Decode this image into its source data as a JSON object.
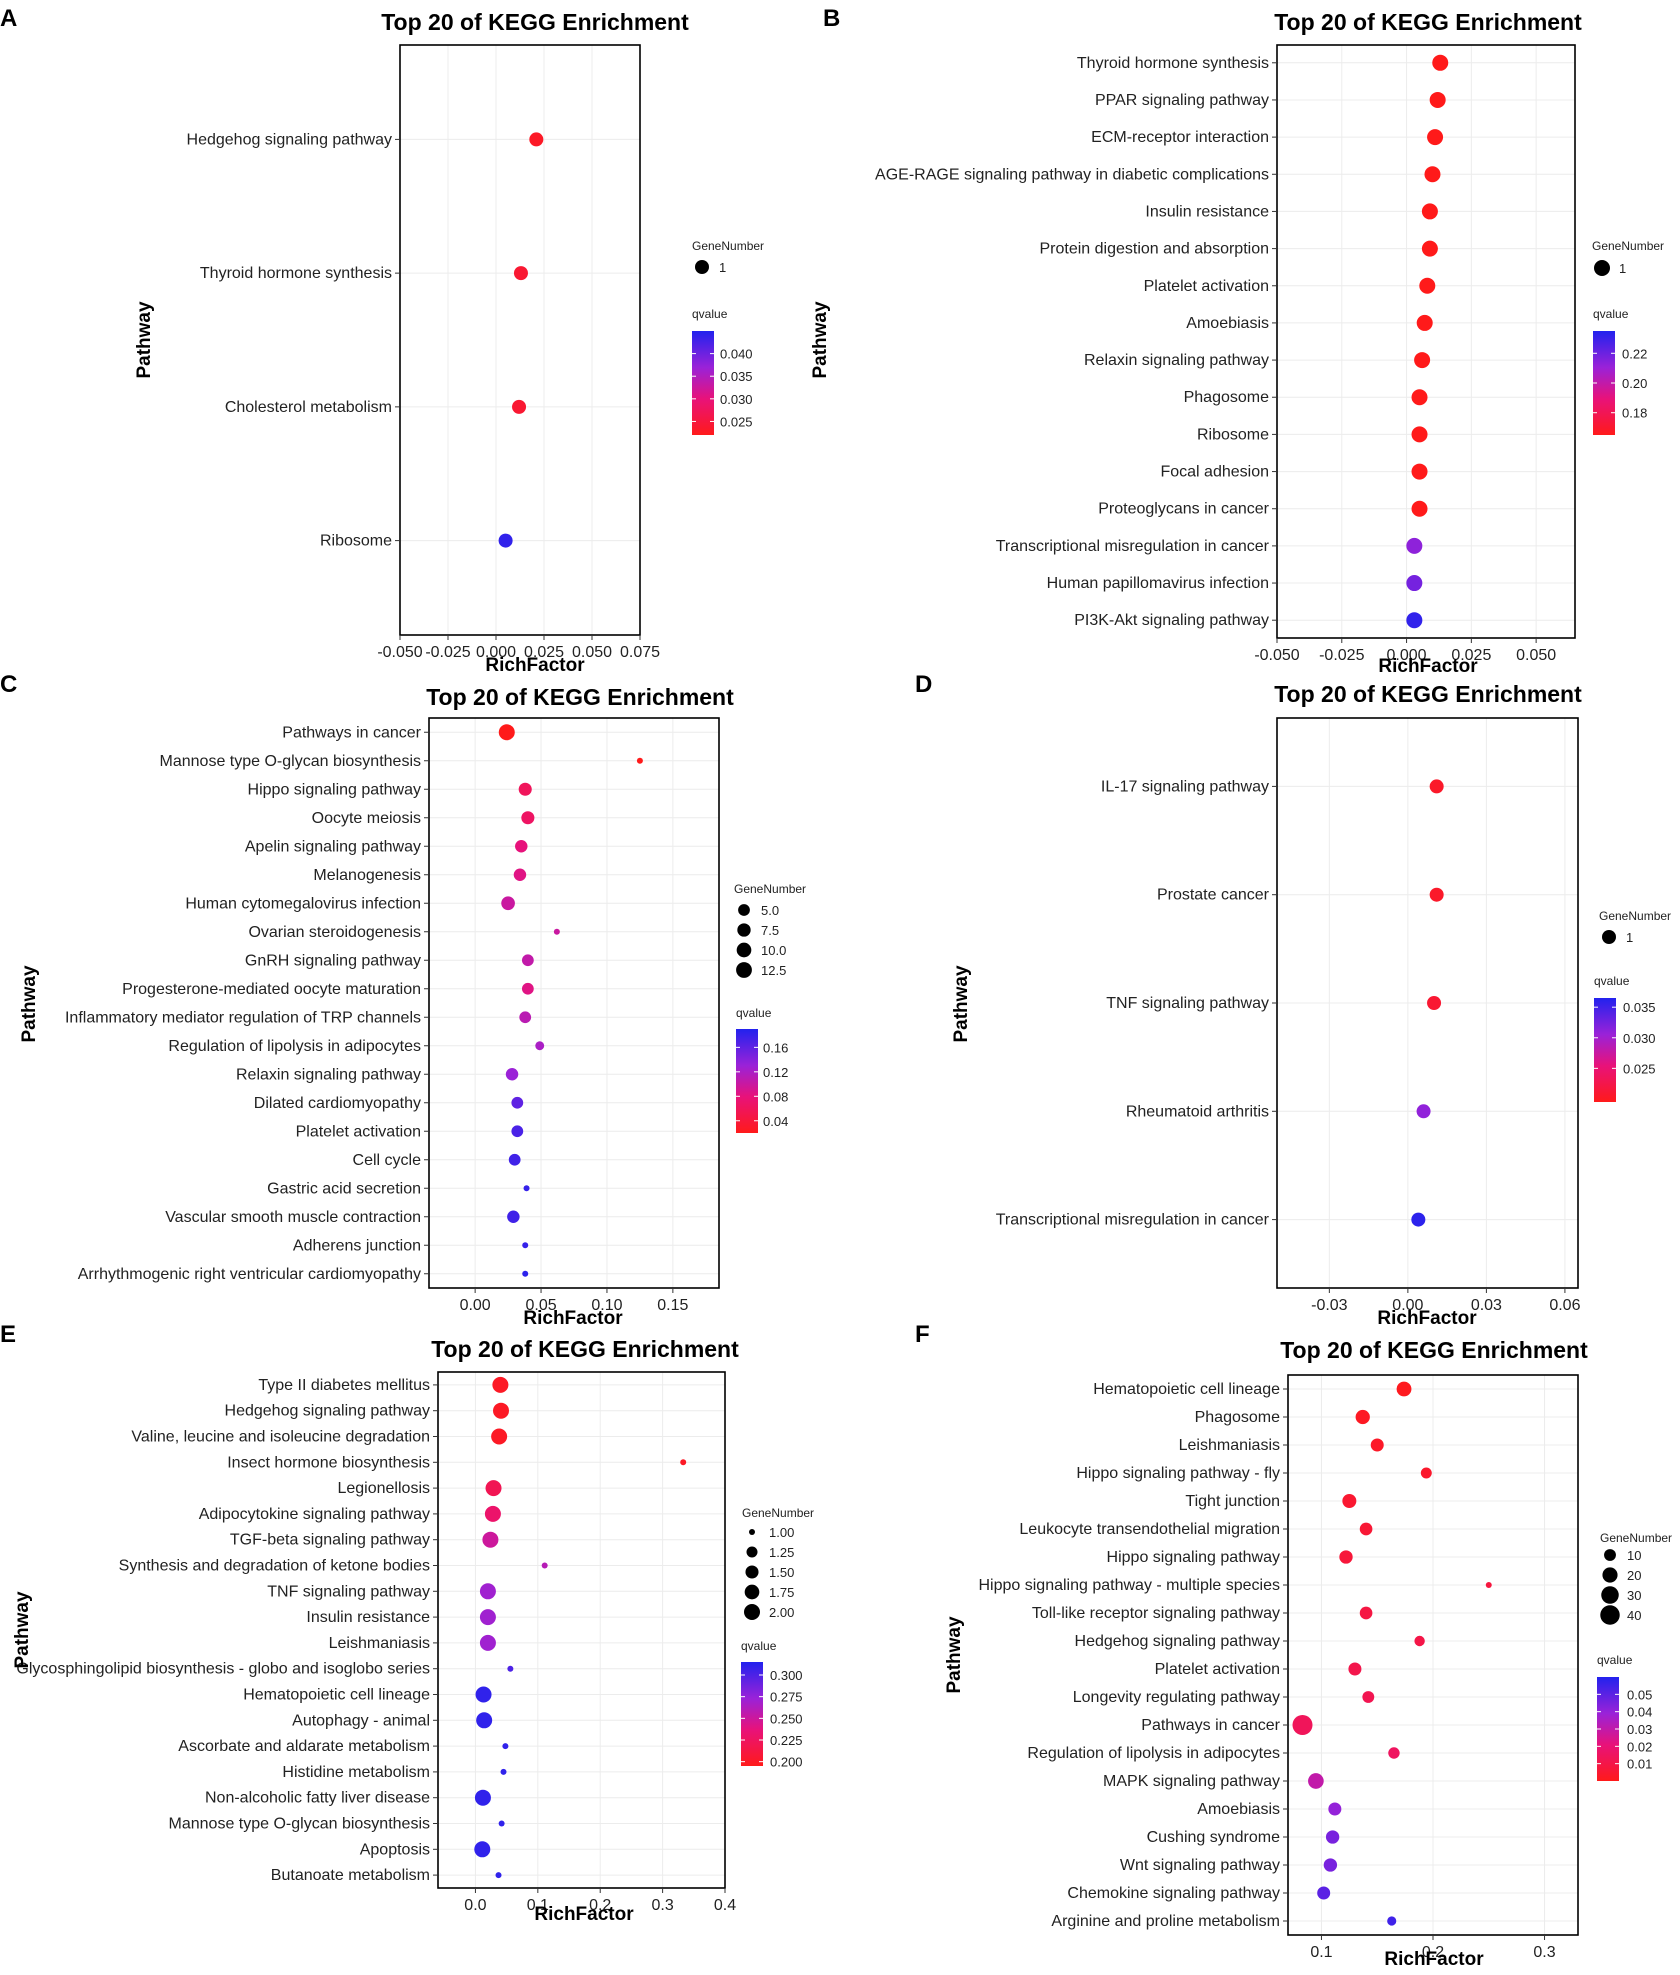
{
  "chart_data": [
    {
      "panel": "A",
      "type": "scatter",
      "title": "Top 20 of KEGG Enrichment",
      "xlabel": "RichFactor",
      "ylabel": "Pathway",
      "xlim": [
        -0.05,
        0.075
      ],
      "xticks": [
        -0.05,
        -0.025,
        0.0,
        0.025,
        0.05,
        0.075
      ],
      "xtick_labels": [
        "-0.050",
        "-0.025",
        "0.000",
        "0.025",
        "0.050",
        "0.075"
      ],
      "pathways": [
        "Hedgehog signaling pathway",
        "Thyroid hormone synthesis",
        "Cholesterol metabolism",
        "Ribosome"
      ],
      "rich_factor": [
        0.021,
        0.013,
        0.012,
        0.005
      ],
      "gene_number": [
        1,
        1,
        1,
        1
      ],
      "qvalue": [
        0.023,
        0.024,
        0.024,
        0.044
      ],
      "size_legend": {
        "title": "GeneNumber",
        "values": [
          1
        ],
        "labels": [
          "1"
        ]
      },
      "color_legend": {
        "title": "qvalue",
        "min": 0.022,
        "max": 0.045,
        "ticks": [
          0.04,
          0.035,
          0.03,
          0.025
        ],
        "labels": [
          "0.040",
          "0.035",
          "0.030",
          "0.025"
        ]
      }
    },
    {
      "panel": "B",
      "type": "scatter",
      "title": "Top 20 of KEGG Enrichment",
      "xlabel": "RichFactor",
      "ylabel": "Pathway",
      "xlim": [
        -0.05,
        0.065
      ],
      "xticks": [
        -0.05,
        -0.025,
        0.0,
        0.025,
        0.05
      ],
      "xtick_labels": [
        "-0.050",
        "-0.025",
        "0.000",
        "0.025",
        "0.050"
      ],
      "pathways": [
        "Thyroid hormone synthesis",
        "PPAR signaling pathway",
        "ECM-receptor interaction",
        "AGE-RAGE signaling pathway in diabetic complications",
        "Insulin resistance",
        "Protein digestion and absorption",
        "Platelet activation",
        "Amoebiasis",
        "Relaxin signaling pathway",
        "Phagosome",
        "Ribosome",
        "Focal adhesion",
        "Proteoglycans in cancer",
        "Transcriptional misregulation in cancer",
        "Human papillomavirus infection",
        "PI3K-Akt signaling pathway"
      ],
      "rich_factor": [
        0.013,
        0.012,
        0.011,
        0.01,
        0.009,
        0.009,
        0.008,
        0.007,
        0.006,
        0.005,
        0.005,
        0.005,
        0.005,
        0.003,
        0.003,
        0.003
      ],
      "gene_number": [
        1,
        1,
        1,
        1,
        1,
        1,
        1,
        1,
        1,
        1,
        1,
        1,
        1,
        1,
        1,
        1
      ],
      "qvalue": [
        0.165,
        0.165,
        0.165,
        0.165,
        0.165,
        0.165,
        0.165,
        0.165,
        0.165,
        0.165,
        0.165,
        0.165,
        0.165,
        0.213,
        0.218,
        0.232
      ],
      "size_legend": {
        "title": "GeneNumber",
        "values": [
          1
        ],
        "labels": [
          "1"
        ]
      },
      "color_legend": {
        "title": "qvalue",
        "min": 0.165,
        "max": 0.235,
        "ticks": [
          0.22,
          0.2,
          0.18
        ],
        "labels": [
          "0.22",
          "0.20",
          "0.18"
        ]
      }
    },
    {
      "panel": "C",
      "type": "scatter",
      "title": "Top 20 of KEGG Enrichment",
      "xlabel": "RichFactor",
      "ylabel": "Pathway",
      "xlim": [
        -0.035,
        0.185
      ],
      "xticks": [
        0.0,
        0.05,
        0.1,
        0.15
      ],
      "xtick_labels": [
        "0.00",
        "0.05",
        "0.10",
        "0.15"
      ],
      "pathways": [
        "Pathways in cancer",
        "Mannose type O-glycan biosynthesis",
        "Hippo signaling pathway",
        "Oocyte meiosis",
        "Apelin signaling pathway",
        "Melanogenesis",
        "Human cytomegalovirus infection",
        "Ovarian steroidogenesis",
        "GnRH signaling pathway",
        "Progesterone-mediated oocyte maturation",
        "Inflammatory mediator regulation of TRP channels",
        "Regulation of lipolysis in adipocytes",
        "Relaxin signaling pathway",
        "Dilated cardiomyopathy",
        "Platelet activation",
        "Cell cycle",
        "Gastric acid secretion",
        "Vascular smooth muscle contraction",
        "Adherens junction",
        "Arrhythmogenic right ventricular cardiomyopathy"
      ],
      "rich_factor": [
        0.024,
        0.125,
        0.038,
        0.04,
        0.035,
        0.034,
        0.025,
        0.062,
        0.04,
        0.04,
        0.038,
        0.049,
        0.028,
        0.032,
        0.032,
        0.03,
        0.039,
        0.029,
        0.038,
        0.038
      ],
      "gene_number": [
        13,
        1,
        7,
        7,
        6,
        6,
        8,
        1,
        5,
        5,
        5,
        2,
        6,
        5,
        5,
        5,
        1,
        6,
        1,
        1
      ],
      "qvalue": [
        0.02,
        0.02,
        0.06,
        0.065,
        0.08,
        0.085,
        0.1,
        0.1,
        0.105,
        0.085,
        0.11,
        0.12,
        0.13,
        0.16,
        0.17,
        0.175,
        0.18,
        0.175,
        0.18,
        0.185
      ],
      "size_legend": {
        "title": "GeneNumber",
        "values": [
          5,
          7.5,
          10,
          12.5
        ],
        "labels": [
          "5.0",
          "7.5",
          "10.0",
          "12.5"
        ]
      },
      "color_legend": {
        "title": "qvalue",
        "min": 0.02,
        "max": 0.19,
        "ticks": [
          0.16,
          0.12,
          0.08,
          0.04
        ],
        "labels": [
          "0.16",
          "0.12",
          "0.08",
          "0.04"
        ]
      }
    },
    {
      "panel": "D",
      "type": "scatter",
      "title": "Top 20 of KEGG Enrichment",
      "xlabel": "RichFactor",
      "ylabel": "Pathway",
      "xlim": [
        -0.05,
        0.065
      ],
      "xticks": [
        -0.03,
        0.0,
        0.03,
        0.06
      ],
      "xtick_labels": [
        "-0.03",
        "0.00",
        "0.03",
        "0.06"
      ],
      "pathways": [
        "IL-17 signaling pathway",
        "Prostate cancer",
        "TNF signaling pathway",
        "Rheumatoid arthritis",
        "Transcriptional misregulation in cancer"
      ],
      "rich_factor": [
        0.011,
        0.011,
        0.01,
        0.006,
        0.004
      ],
      "gene_number": [
        1,
        1,
        1,
        1,
        1
      ],
      "qvalue": [
        0.0205,
        0.0205,
        0.021,
        0.031,
        0.036
      ],
      "size_legend": {
        "title": "GeneNumber",
        "values": [
          1
        ],
        "labels": [
          "1"
        ]
      },
      "color_legend": {
        "title": "qvalue",
        "min": 0.0195,
        "max": 0.0365,
        "ticks": [
          0.035,
          0.03,
          0.025
        ],
        "labels": [
          "0.035",
          "0.030",
          "0.025"
        ]
      }
    },
    {
      "panel": "E",
      "type": "scatter",
      "title": "Top 20 of KEGG Enrichment",
      "xlabel": "RichFactor",
      "ylabel": "Pathway",
      "xlim": [
        -0.06,
        0.4
      ],
      "xticks": [
        0.0,
        0.1,
        0.2,
        0.3,
        0.4
      ],
      "xtick_labels": [
        "0.0",
        "0.1",
        "0.2",
        "0.3",
        "0.4"
      ],
      "pathways": [
        "Type II diabetes mellitus",
        "Hedgehog signaling pathway",
        "Valine, leucine and isoleucine degradation",
        "Insect hormone biosynthesis",
        "Legionellosis",
        "Adipocytokine signaling pathway",
        "TGF-beta signaling pathway",
        "Synthesis and degradation of ketone bodies",
        "TNF signaling pathway",
        "Insulin resistance",
        "Leishmaniasis",
        "Glycosphingolipid biosynthesis - globo and isoglobo series",
        "Hematopoietic cell lineage",
        "Autophagy - animal",
        "Ascorbate and aldarate metabolism",
        "Histidine metabolism",
        "Non-alcoholic fatty liver disease",
        "Mannose type O-glycan biosynthesis",
        "Apoptosis",
        "Butanoate metabolism"
      ],
      "rich_factor": [
        0.04,
        0.041,
        0.038,
        0.333,
        0.029,
        0.028,
        0.024,
        0.111,
        0.02,
        0.02,
        0.02,
        0.056,
        0.013,
        0.014,
        0.048,
        0.045,
        0.012,
        0.042,
        0.011,
        0.037
      ],
      "gene_number": [
        2,
        2,
        2,
        1,
        2,
        2,
        2,
        1,
        2,
        2,
        2,
        1,
        2,
        2,
        1,
        1,
        2,
        1,
        2,
        1
      ],
      "qvalue": [
        0.2,
        0.2,
        0.2,
        0.2,
        0.22,
        0.23,
        0.25,
        0.26,
        0.27,
        0.27,
        0.27,
        0.3,
        0.31,
        0.31,
        0.31,
        0.31,
        0.31,
        0.31,
        0.31,
        0.31
      ],
      "size_legend": {
        "title": "GeneNumber",
        "values": [
          1,
          1.25,
          1.5,
          1.75,
          2
        ],
        "labels": [
          "1.00",
          "1.25",
          "1.50",
          "1.75",
          "2.00"
        ]
      },
      "color_legend": {
        "title": "qvalue",
        "min": 0.195,
        "max": 0.315,
        "ticks": [
          0.3,
          0.275,
          0.25,
          0.225,
          0.2
        ],
        "labels": [
          "0.300",
          "0.275",
          "0.250",
          "0.225",
          "0.200"
        ]
      }
    },
    {
      "panel": "F",
      "type": "scatter",
      "title": "Top 20 of KEGG Enrichment",
      "xlabel": "RichFactor",
      "ylabel": "Pathway",
      "xlim": [
        0.07,
        0.33
      ],
      "xticks": [
        0.1,
        0.2,
        0.3
      ],
      "xtick_labels": [
        "0.1",
        "0.2",
        "0.3"
      ],
      "pathways": [
        "Hematopoietic cell lineage",
        "Phagosome",
        "Leishmaniasis",
        "Hippo signaling pathway - fly",
        "Tight junction",
        "Leukocyte transendothelial migration",
        "Hippo signaling pathway",
        "Hippo signaling pathway - multiple species",
        "Toll-like receptor signaling pathway",
        "Hedgehog signaling pathway",
        "Platelet activation",
        "Longevity regulating pathway",
        "Pathways in cancer",
        "Regulation of lipolysis in adipocytes",
        "MAPK signaling pathway",
        "Amoebiasis",
        "Cushing syndrome",
        "Wnt signaling pathway",
        "Chemokine signaling pathway",
        "Arginine and proline metabolism"
      ],
      "rich_factor": [
        0.174,
        0.137,
        0.15,
        0.194,
        0.125,
        0.14,
        0.122,
        0.25,
        0.14,
        0.188,
        0.13,
        0.142,
        0.083,
        0.165,
        0.095,
        0.112,
        0.11,
        0.108,
        0.102,
        0.163
      ],
      "gene_number": [
        19,
        17,
        13,
        8,
        16,
        12,
        14,
        3,
        12,
        7,
        13,
        10,
        43,
        9,
        22,
        13,
        14,
        14,
        13,
        5
      ],
      "qvalue": [
        0.001,
        0.002,
        0.003,
        0.004,
        0.005,
        0.006,
        0.007,
        0.008,
        0.009,
        0.01,
        0.011,
        0.012,
        0.014,
        0.015,
        0.03,
        0.04,
        0.045,
        0.045,
        0.05,
        0.055
      ],
      "size_legend": {
        "title": "GeneNumber",
        "values": [
          10,
          20,
          30,
          40
        ],
        "labels": [
          "10",
          "20",
          "30",
          "40"
        ]
      },
      "color_legend": {
        "title": "qvalue",
        "min": 0.0,
        "max": 0.06,
        "ticks": [
          0.05,
          0.04,
          0.03,
          0.02,
          0.01
        ],
        "labels": [
          "0.05",
          "0.04",
          "0.03",
          "0.02",
          "0.01"
        ]
      }
    }
  ]
}
